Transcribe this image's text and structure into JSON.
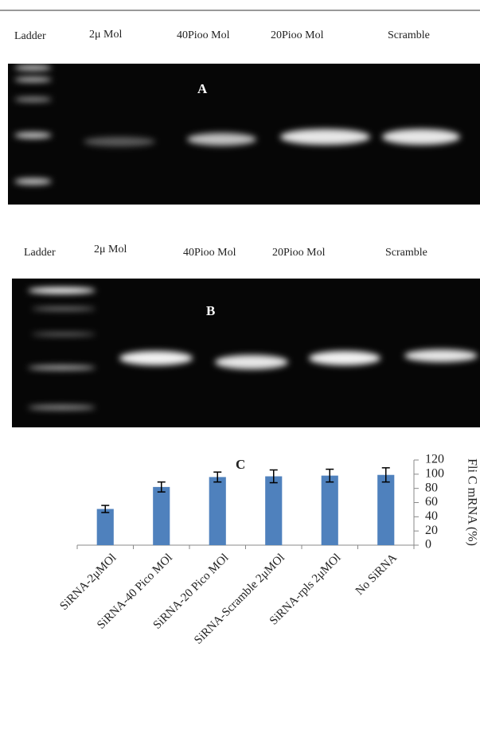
{
  "gels": [
    {
      "panel": "A",
      "lanes": [
        "Ladder",
        "2μ Mol",
        "40Pioo Mol",
        "20Pioo Mol",
        "Scramble"
      ]
    },
    {
      "panel": "B",
      "lanes": [
        "Ladder",
        "2μ Mol",
        "40Pioo Mol",
        "20Pioo Mol",
        "Scramble"
      ]
    }
  ],
  "chart_data": {
    "type": "bar",
    "panel": "C",
    "y_label": "Fli C mRNA (%)",
    "categories": [
      "SiRNA-2μMOl",
      "SiRNA-40 Pico MOl",
      "SiRNA-20 Pico MOl",
      "SiRNA-Scramble 2μMOl",
      "SiRNA-rpls 2μMOl",
      "No SiRNA"
    ],
    "values": [
      51,
      82,
      96,
      97,
      98,
      99
    ],
    "errors": [
      5,
      7,
      7,
      9,
      9,
      10
    ],
    "color": "#4f81bd",
    "ylim": [
      0,
      120
    ],
    "yticks": [
      0,
      20,
      40,
      60,
      80,
      100,
      120
    ],
    "grid": false
  }
}
